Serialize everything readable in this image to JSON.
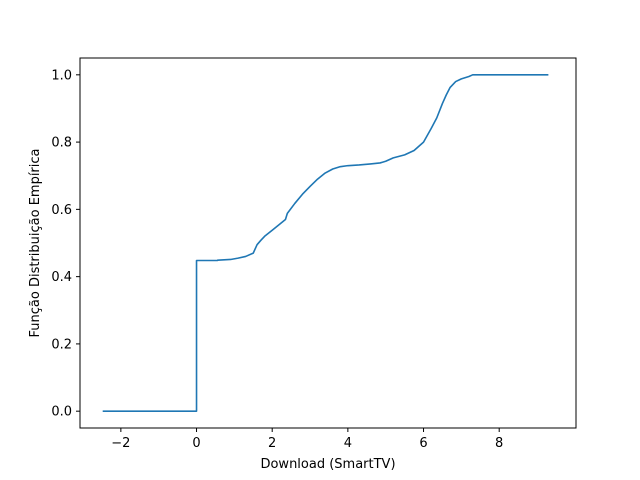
{
  "chart_data": {
    "type": "line",
    "title": "",
    "xlabel": "Download (SmartTV)",
    "ylabel": "Função Distribuição Empírica",
    "xlim": [
      -3.08,
      10.03
    ],
    "ylim": [
      -0.05,
      1.05
    ],
    "xticks": [
      -2,
      0,
      2,
      4,
      6,
      8
    ],
    "yticks": [
      0.0,
      0.2,
      0.4,
      0.6,
      0.8,
      1.0
    ],
    "xtick_labels": [
      "−2",
      "0",
      "2",
      "4",
      "6",
      "8"
    ],
    "ytick_labels": [
      "0.0",
      "0.2",
      "0.4",
      "0.6",
      "0.8",
      "1.0"
    ],
    "grid": false,
    "legend": "none",
    "series": [
      {
        "color": "#1f77b4",
        "x": [
          -2.48,
          0.0,
          0.0,
          0.55,
          0.56,
          0.9,
          1.1,
          1.3,
          1.5,
          1.6,
          1.7,
          1.8,
          2.0,
          2.2,
          2.35,
          2.4,
          2.6,
          2.8,
          3.0,
          3.2,
          3.4,
          3.6,
          3.8,
          4.0,
          4.3,
          4.6,
          4.85,
          5.0,
          5.2,
          5.5,
          5.75,
          6.0,
          6.2,
          6.35,
          6.5,
          6.6,
          6.7,
          6.85,
          7.0,
          7.2,
          7.3,
          9.3
        ],
        "y": [
          0.0,
          0.0,
          0.448,
          0.448,
          0.449,
          0.451,
          0.455,
          0.46,
          0.47,
          0.495,
          0.508,
          0.52,
          0.538,
          0.556,
          0.57,
          0.588,
          0.618,
          0.645,
          0.668,
          0.69,
          0.708,
          0.72,
          0.727,
          0.73,
          0.732,
          0.735,
          0.738,
          0.743,
          0.753,
          0.762,
          0.775,
          0.8,
          0.84,
          0.872,
          0.915,
          0.94,
          0.962,
          0.98,
          0.988,
          0.995,
          1.0,
          1.0
        ]
      }
    ]
  }
}
